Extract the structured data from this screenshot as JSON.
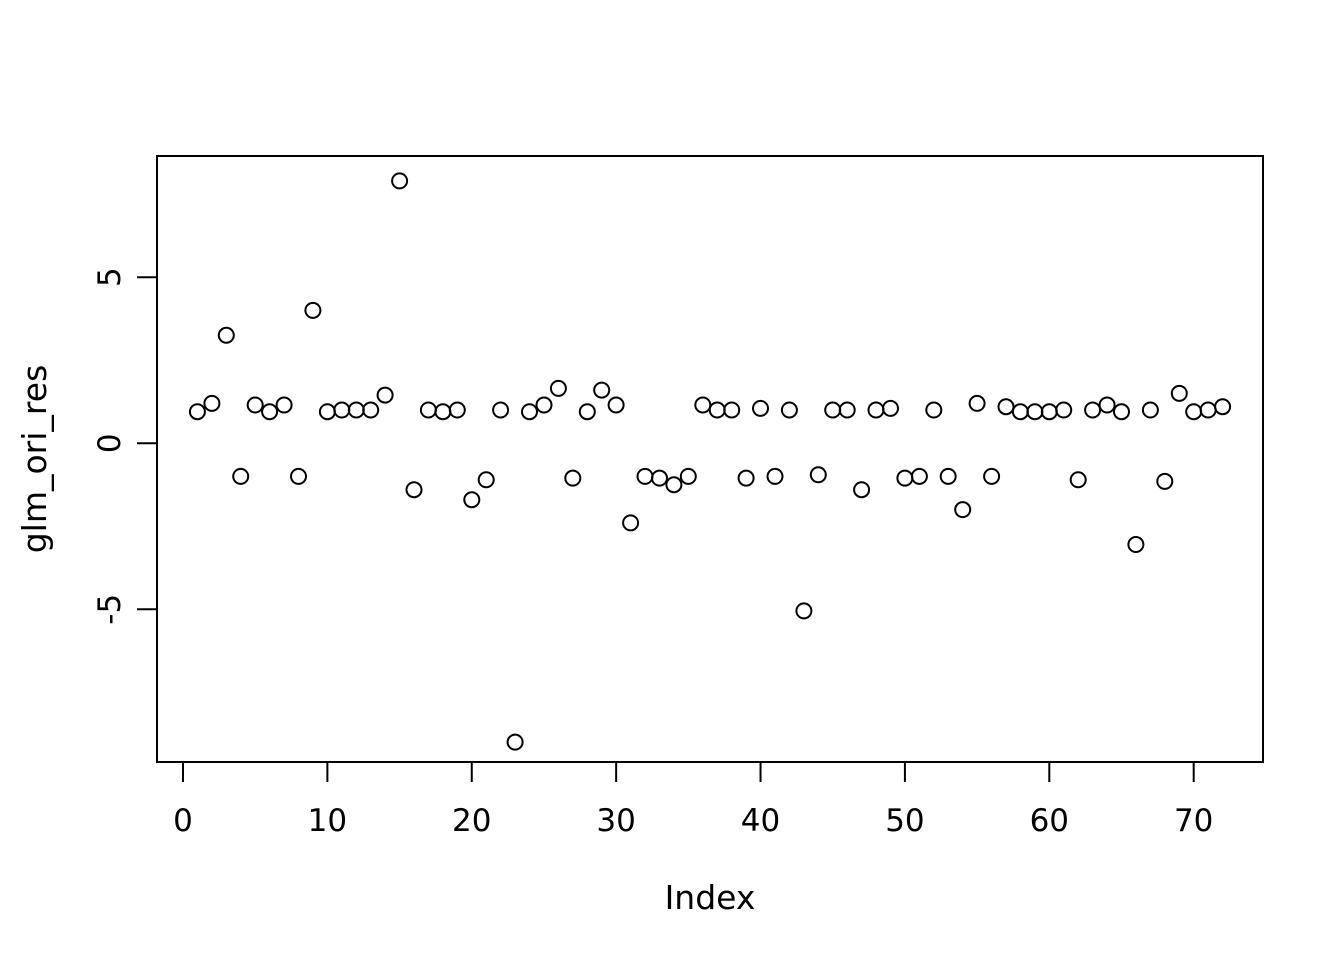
{
  "figure": {
    "background_color": "#ffffff",
    "foreground_color": "#000000",
    "marker": "open-circle"
  },
  "chart_data": {
    "type": "scatter",
    "title": "",
    "xlabel": "Index",
    "ylabel": "glm_ori_res",
    "legend": "none",
    "grid": false,
    "xlim": [
      -1.8,
      74.8
    ],
    "ylim": [
      -9.6,
      8.65
    ],
    "xticks": [
      0,
      10,
      20,
      30,
      40,
      50,
      60,
      70
    ],
    "yticks": [
      -5,
      0,
      5
    ],
    "x": [
      1,
      2,
      3,
      4,
      5,
      6,
      7,
      8,
      9,
      10,
      11,
      12,
      13,
      14,
      15,
      16,
      17,
      18,
      19,
      20,
      21,
      22,
      23,
      24,
      25,
      26,
      27,
      28,
      29,
      30,
      31,
      32,
      33,
      34,
      35,
      36,
      37,
      38,
      39,
      40,
      41,
      42,
      43,
      44,
      45,
      46,
      47,
      48,
      49,
      50,
      51,
      52,
      53,
      54,
      55,
      56,
      57,
      58,
      59,
      60,
      61,
      62,
      63,
      64,
      65,
      66,
      67,
      68,
      69,
      70,
      71,
      72
    ],
    "y": [
      0.95,
      1.2,
      3.25,
      -1.0,
      1.15,
      0.95,
      1.15,
      -1.0,
      4.0,
      0.95,
      1.0,
      1.0,
      1.0,
      1.45,
      7.9,
      -1.4,
      1.0,
      0.95,
      1.0,
      -1.7,
      -1.1,
      1.0,
      -9.0,
      0.95,
      1.15,
      1.65,
      -1.05,
      0.95,
      1.6,
      1.15,
      -2.4,
      -1.0,
      -1.05,
      -1.25,
      -1.0,
      1.15,
      1.0,
      1.0,
      -1.05,
      1.05,
      -1.0,
      1.0,
      -5.05,
      -0.95,
      1.0,
      1.0,
      -1.4,
      1.0,
      1.05,
      -1.05,
      -1.0,
      1.0,
      -1.0,
      -2.0,
      1.2,
      -1.0,
      1.1,
      0.95,
      0.95,
      0.95,
      1.0,
      -1.1,
      1.0,
      1.15,
      0.95,
      -3.05,
      1.0,
      -1.15,
      1.5,
      0.95,
      1.0,
      1.1
    ]
  }
}
